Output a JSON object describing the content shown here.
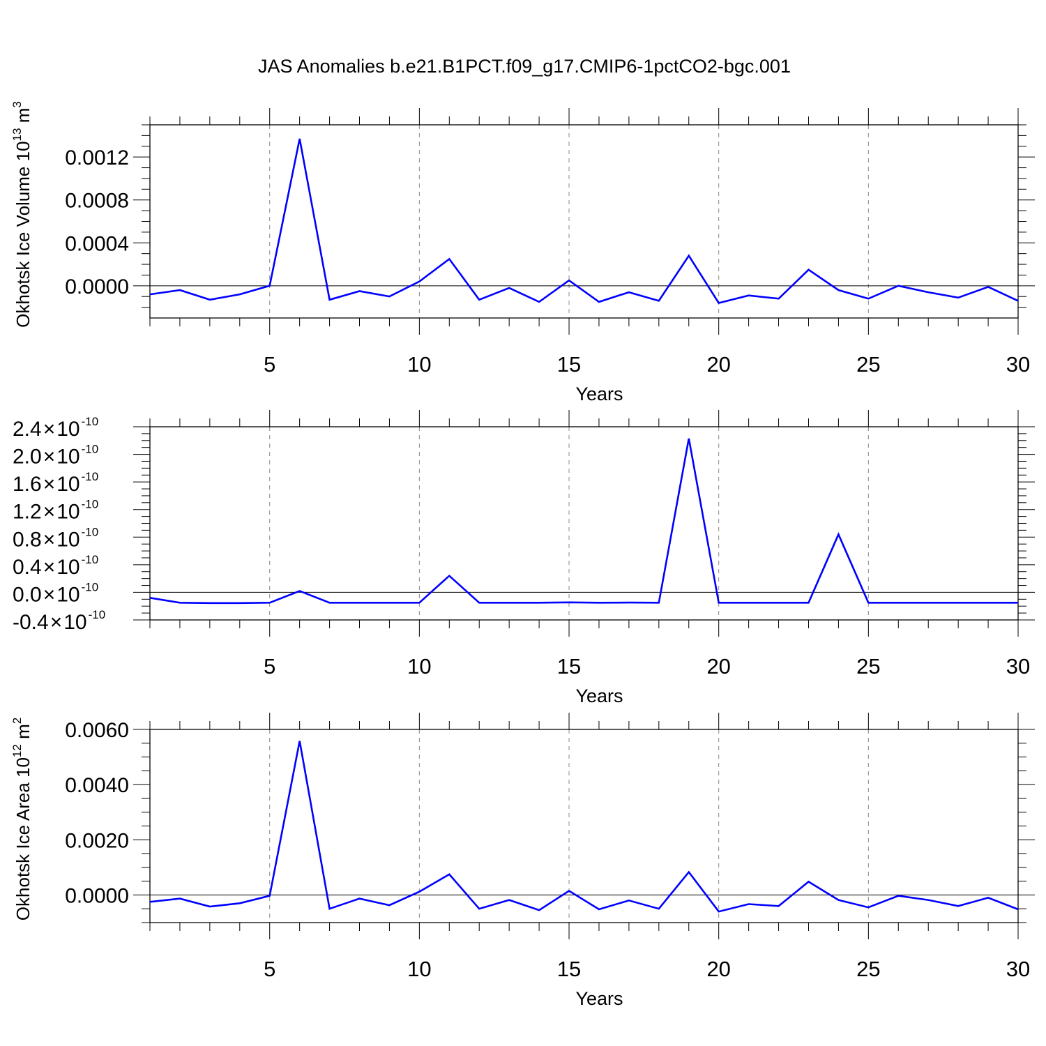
{
  "title": "JAS Anomalies b.e21.B1PCT.f09_g17.CMIP6-1pctCO2-bgc.001",
  "colors": {
    "line": "#0000ff",
    "axis": "#000000",
    "grid": "#888888"
  },
  "chart_data": [
    {
      "type": "line",
      "ylabel": {
        "text": "Okhotsk Ice Volume 10",
        "sup": "13",
        "suffix": " m",
        "sup2": "3"
      },
      "xlabel": "Years",
      "xlim": [
        1,
        30
      ],
      "ylim": [
        -0.0003,
        0.0015
      ],
      "x_ticks": [
        5,
        10,
        15,
        20,
        25,
        30
      ],
      "y_ticks": [
        0.0,
        0.0004,
        0.0008,
        0.0012
      ],
      "y_tick_labels": [
        "0.0000",
        "0.0004",
        "0.0008",
        "0.0012"
      ],
      "grid_x": true,
      "x": [
        1,
        2,
        3,
        4,
        5,
        6,
        7,
        8,
        9,
        10,
        11,
        12,
        13,
        14,
        15,
        16,
        17,
        18,
        19,
        20,
        21,
        22,
        23,
        24,
        25,
        26,
        27,
        28,
        29,
        30
      ],
      "series": [
        {
          "values": [
            -8e-05,
            -4e-05,
            -0.00013,
            -8e-05,
            0.0,
            0.00137,
            -0.00013,
            -5e-05,
            -0.0001,
            4e-05,
            0.00025,
            -0.00013,
            -2e-05,
            -0.00015,
            5e-05,
            -0.00015,
            -6e-05,
            -0.00014,
            0.00028,
            -0.00016,
            -9e-05,
            -0.00012,
            0.00015,
            -4e-05,
            -0.00012,
            0.0,
            -6e-05,
            -0.00011,
            -1e-05,
            -0.00014
          ]
        }
      ]
    },
    {
      "type": "line",
      "ylabel": null,
      "xlabel": "Years",
      "xlim": [
        1,
        30
      ],
      "ylim": [
        -4e-11,
        2.4e-10
      ],
      "x_ticks": [
        5,
        10,
        15,
        20,
        25,
        30
      ],
      "y_ticks": [
        -4e-11,
        0,
        4e-11,
        8e-11,
        1.2e-10,
        1.6e-10,
        2e-10,
        2.4e-10
      ],
      "y_tick_labels": [
        {
          "mant": "-0.4",
          "exp": "-10"
        },
        {
          "mant": "0.0",
          "exp": "-10"
        },
        {
          "mant": "0.4",
          "exp": "-10"
        },
        {
          "mant": "0.8",
          "exp": "-10"
        },
        {
          "mant": "1.2",
          "exp": "-10"
        },
        {
          "mant": "1.6",
          "exp": "-10"
        },
        {
          "mant": "2.0",
          "exp": "-10"
        },
        {
          "mant": "2.4",
          "exp": "-10"
        }
      ],
      "grid_x": true,
      "x": [
        1,
        2,
        3,
        4,
        5,
        6,
        7,
        8,
        9,
        10,
        11,
        12,
        13,
        14,
        15,
        16,
        17,
        18,
        19,
        20,
        21,
        22,
        23,
        24,
        25,
        26,
        27,
        28,
        29,
        30
      ],
      "series": [
        {
          "values": [
            -8e-12,
            -1.5e-11,
            -1.55e-11,
            -1.55e-11,
            -1.5e-11,
            2e-12,
            -1.5e-11,
            -1.5e-11,
            -1.5e-11,
            -1.5e-11,
            2.4e-11,
            -1.5e-11,
            -1.5e-11,
            -1.5e-11,
            -1.45e-11,
            -1.5e-11,
            -1.48e-11,
            -1.5e-11,
            2.23e-10,
            -1.5e-11,
            -1.5e-11,
            -1.5e-11,
            -1.5e-11,
            8.4e-11,
            -1.5e-11,
            -1.5e-11,
            -1.5e-11,
            -1.5e-11,
            -1.5e-11,
            -1.5e-11
          ]
        }
      ]
    },
    {
      "type": "line",
      "ylabel": {
        "text": "Okhotsk Ice Area 10",
        "sup": "12",
        "suffix": " m",
        "sup2": "2"
      },
      "xlabel": "Years",
      "xlim": [
        1,
        30
      ],
      "ylim": [
        -0.001,
        0.006
      ],
      "x_ticks": [
        5,
        10,
        15,
        20,
        25,
        30
      ],
      "y_ticks": [
        0.0,
        0.002,
        0.004,
        0.006
      ],
      "y_tick_labels": [
        "0.0000",
        "0.0020",
        "0.0040",
        "0.0060"
      ],
      "grid_x": true,
      "x": [
        1,
        2,
        3,
        4,
        5,
        6,
        7,
        8,
        9,
        10,
        11,
        12,
        13,
        14,
        15,
        16,
        17,
        18,
        19,
        20,
        21,
        22,
        23,
        24,
        25,
        26,
        27,
        28,
        29,
        30
      ],
      "series": [
        {
          "values": [
            -0.00025,
            -0.00013,
            -0.00042,
            -0.0003,
            -3e-05,
            0.00558,
            -0.0005,
            -0.00013,
            -0.00037,
            0.00012,
            0.00075,
            -0.0005,
            -0.00018,
            -0.00055,
            0.00015,
            -0.00052,
            -0.0002,
            -0.0005,
            0.00083,
            -0.0006,
            -0.00033,
            -0.0004,
            0.00048,
            -0.00018,
            -0.00045,
            -3e-05,
            -0.00018,
            -0.0004,
            -0.0001,
            -0.00052
          ]
        }
      ]
    }
  ]
}
